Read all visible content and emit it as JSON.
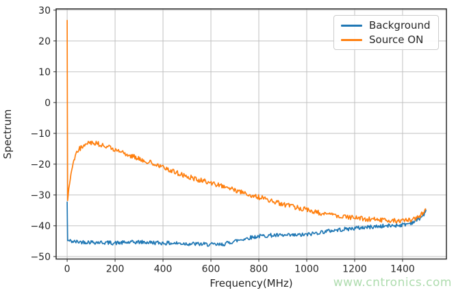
{
  "chart_data": {
    "type": "line",
    "title": "",
    "xlabel": "Frequency(MHz)",
    "ylabel": "Spectrum",
    "xlim": [
      -46,
      1583
    ],
    "ylim": [
      -50.8,
      30.4
    ],
    "xticks": [
      0,
      200,
      400,
      600,
      800,
      1000,
      1200,
      1400
    ],
    "yticks": [
      30,
      20,
      10,
      0,
      -10,
      -20,
      -30,
      -40,
      -50
    ],
    "grid": true,
    "grid_color": "#c0c0c0",
    "spine_color": "#2a2a2a",
    "legend_position": "upper right",
    "x_units": "MHz",
    "series": [
      {
        "name": "Background",
        "color": "#1f77b4",
        "noise_amplitude": 0.65,
        "anchors": [
          [
            0,
            -32.2
          ],
          [
            2,
            -44.8
          ],
          [
            30,
            -45.2
          ],
          [
            100,
            -45.3
          ],
          [
            200,
            -45.6
          ],
          [
            300,
            -45.3
          ],
          [
            400,
            -45.6
          ],
          [
            500,
            -45.8
          ],
          [
            600,
            -46.1
          ],
          [
            640,
            -46.2
          ],
          [
            680,
            -45.4
          ],
          [
            720,
            -44.6
          ],
          [
            760,
            -43.9
          ],
          [
            800,
            -43.4
          ],
          [
            850,
            -43.1
          ],
          [
            900,
            -43.2
          ],
          [
            950,
            -43.1
          ],
          [
            1000,
            -42.9
          ],
          [
            1050,
            -42.2
          ],
          [
            1100,
            -41.6
          ],
          [
            1150,
            -41.2
          ],
          [
            1200,
            -40.8
          ],
          [
            1250,
            -40.5
          ],
          [
            1300,
            -40.2
          ],
          [
            1350,
            -40.0
          ],
          [
            1400,
            -39.7
          ],
          [
            1430,
            -39.2
          ],
          [
            1455,
            -38.4
          ],
          [
            1475,
            -37.4
          ],
          [
            1490,
            -36.2
          ],
          [
            1500,
            -35.2
          ]
        ]
      },
      {
        "name": "Source ON",
        "color": "#ff7f0e",
        "noise_amplitude": 0.8,
        "anchors": [
          [
            0,
            26.8
          ],
          [
            2,
            -31.8
          ],
          [
            8,
            -27.0
          ],
          [
            15,
            -23.5
          ],
          [
            25,
            -19.5
          ],
          [
            35,
            -17.0
          ],
          [
            50,
            -15.2
          ],
          [
            65,
            -14.0
          ],
          [
            80,
            -13.2
          ],
          [
            100,
            -12.9
          ],
          [
            120,
            -13.1
          ],
          [
            150,
            -13.9
          ],
          [
            200,
            -15.4
          ],
          [
            250,
            -16.9
          ],
          [
            300,
            -18.1
          ],
          [
            350,
            -19.5
          ],
          [
            400,
            -21.0
          ],
          [
            450,
            -22.6
          ],
          [
            500,
            -24.0
          ],
          [
            550,
            -25.1
          ],
          [
            600,
            -26.1
          ],
          [
            650,
            -27.2
          ],
          [
            700,
            -28.4
          ],
          [
            750,
            -29.6
          ],
          [
            800,
            -30.7
          ],
          [
            850,
            -31.9
          ],
          [
            900,
            -33.0
          ],
          [
            950,
            -34.0
          ],
          [
            1000,
            -34.8
          ],
          [
            1050,
            -35.7
          ],
          [
            1100,
            -36.4
          ],
          [
            1150,
            -37.0
          ],
          [
            1200,
            -37.5
          ],
          [
            1250,
            -37.9
          ],
          [
            1300,
            -38.1
          ],
          [
            1350,
            -38.3
          ],
          [
            1400,
            -38.4
          ],
          [
            1430,
            -38.2
          ],
          [
            1455,
            -37.6
          ],
          [
            1475,
            -36.6
          ],
          [
            1490,
            -35.4
          ],
          [
            1500,
            -34.4
          ]
        ]
      }
    ]
  },
  "watermark": {
    "text": "www.cntronics.com",
    "color": "#aedcae"
  }
}
